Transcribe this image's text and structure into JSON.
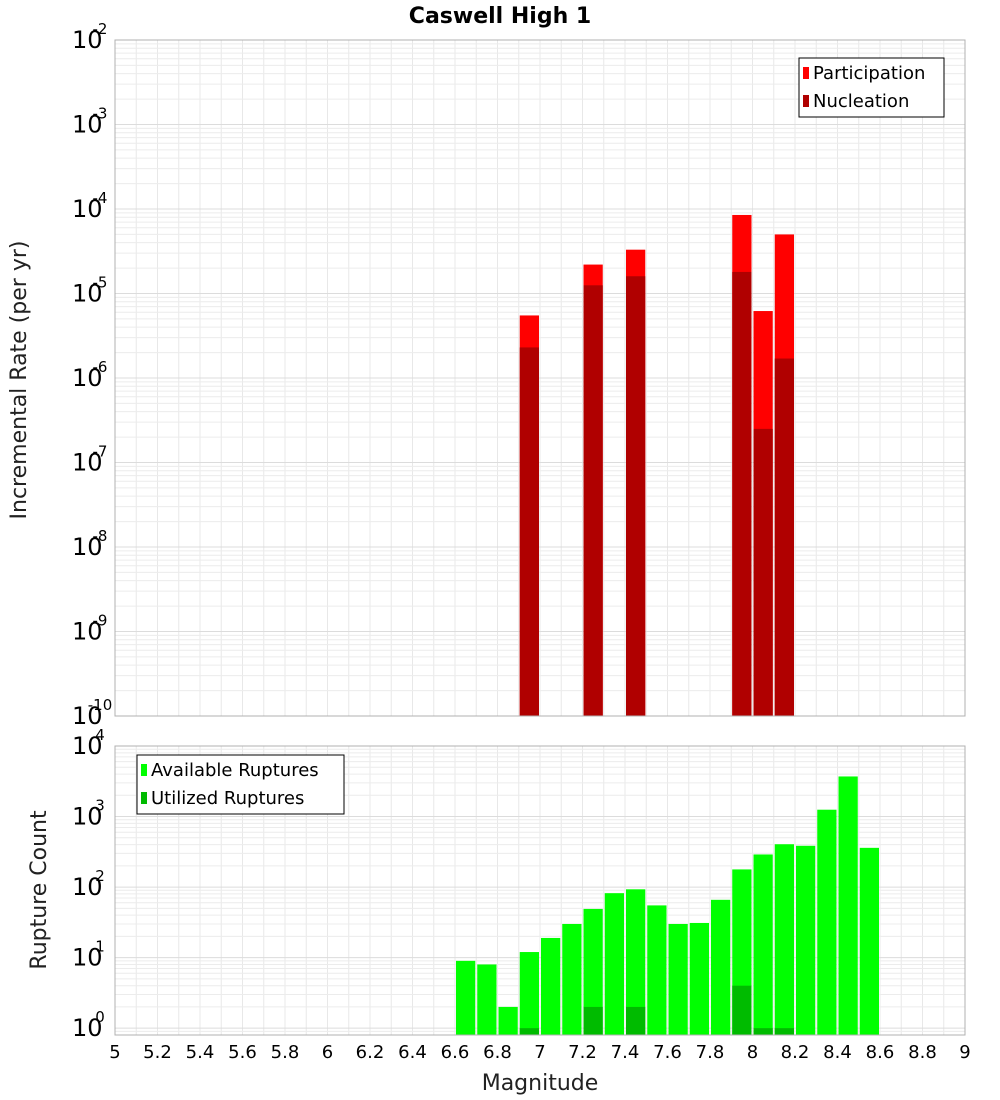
{
  "chart_data": [
    {
      "type": "bar",
      "title": "Caswell High 1",
      "xlabel": "",
      "ylabel": "Incremental Rate (per yr)",
      "yscale": "log",
      "ylim": [
        1e-10,
        0.01
      ],
      "xlim": [
        5,
        9
      ],
      "y_tick_labels": [
        {
          "base": "10",
          "exp": "-10"
        },
        {
          "base": "10",
          "exp": "-9"
        },
        {
          "base": "10",
          "exp": "-8"
        },
        {
          "base": "10",
          "exp": "-7"
        },
        {
          "base": "10",
          "exp": "-6"
        },
        {
          "base": "10",
          "exp": "-5"
        },
        {
          "base": "10",
          "exp": "-4"
        },
        {
          "base": "10",
          "exp": "-3"
        },
        {
          "base": "10",
          "exp": "-2"
        }
      ],
      "grid": true,
      "legend_position": "top-right",
      "series": [
        {
          "name": "Participation",
          "color": "#ff0000",
          "x": [
            6.95,
            7.25,
            7.45,
            7.95,
            8.05,
            8.15
          ],
          "values": [
            5.5e-06,
            2.2e-05,
            3.3e-05,
            8.5e-05,
            6.2e-06,
            5e-05
          ]
        },
        {
          "name": "Nucleation",
          "color": "#b00000",
          "x": [
            6.95,
            7.25,
            7.45,
            7.95,
            8.05,
            8.15
          ],
          "values": [
            2.3e-06,
            1.25e-05,
            1.6e-05,
            1.8e-05,
            2.5e-07,
            1.7e-06
          ]
        }
      ]
    },
    {
      "type": "bar",
      "title": "",
      "xlabel": "Magnitude",
      "ylabel": "Rupture Count",
      "yscale": "log",
      "ylim": [
        0.8,
        10000
      ],
      "xlim": [
        5,
        9
      ],
      "x_tick_labels": [
        "5",
        "5.2",
        "5.4",
        "5.6",
        "5.8",
        "6",
        "6.2",
        "6.4",
        "6.6",
        "6.8",
        "7",
        "7.2",
        "7.4",
        "7.6",
        "7.8",
        "8",
        "8.2",
        "8.4",
        "8.6",
        "8.8",
        "9"
      ],
      "y_tick_labels": [
        {
          "base": "10",
          "exp": "0"
        },
        {
          "base": "10",
          "exp": "1"
        },
        {
          "base": "10",
          "exp": "2"
        },
        {
          "base": "10",
          "exp": "3"
        },
        {
          "base": "10",
          "exp": "4"
        }
      ],
      "grid": true,
      "legend_position": "top-left",
      "series": [
        {
          "name": "Available Ruptures",
          "color": "#00ff00",
          "x": [
            6.65,
            6.75,
            6.85,
            6.95,
            7.05,
            7.15,
            7.25,
            7.35,
            7.45,
            7.55,
            7.65,
            7.75,
            7.85,
            7.95,
            8.05,
            8.15,
            8.25,
            8.35,
            8.45,
            8.55
          ],
          "values": [
            9,
            8,
            2,
            12,
            19,
            30,
            49,
            82,
            93,
            55,
            30,
            31,
            66,
            178,
            290,
            405,
            385,
            1250,
            3700,
            360
          ]
        },
        {
          "name": "Utilized Ruptures",
          "color": "#00bb00",
          "x": [
            6.95,
            7.25,
            7.45,
            7.95,
            8.05,
            8.15
          ],
          "values": [
            1,
            2,
            2,
            4,
            1,
            1
          ]
        }
      ]
    }
  ]
}
